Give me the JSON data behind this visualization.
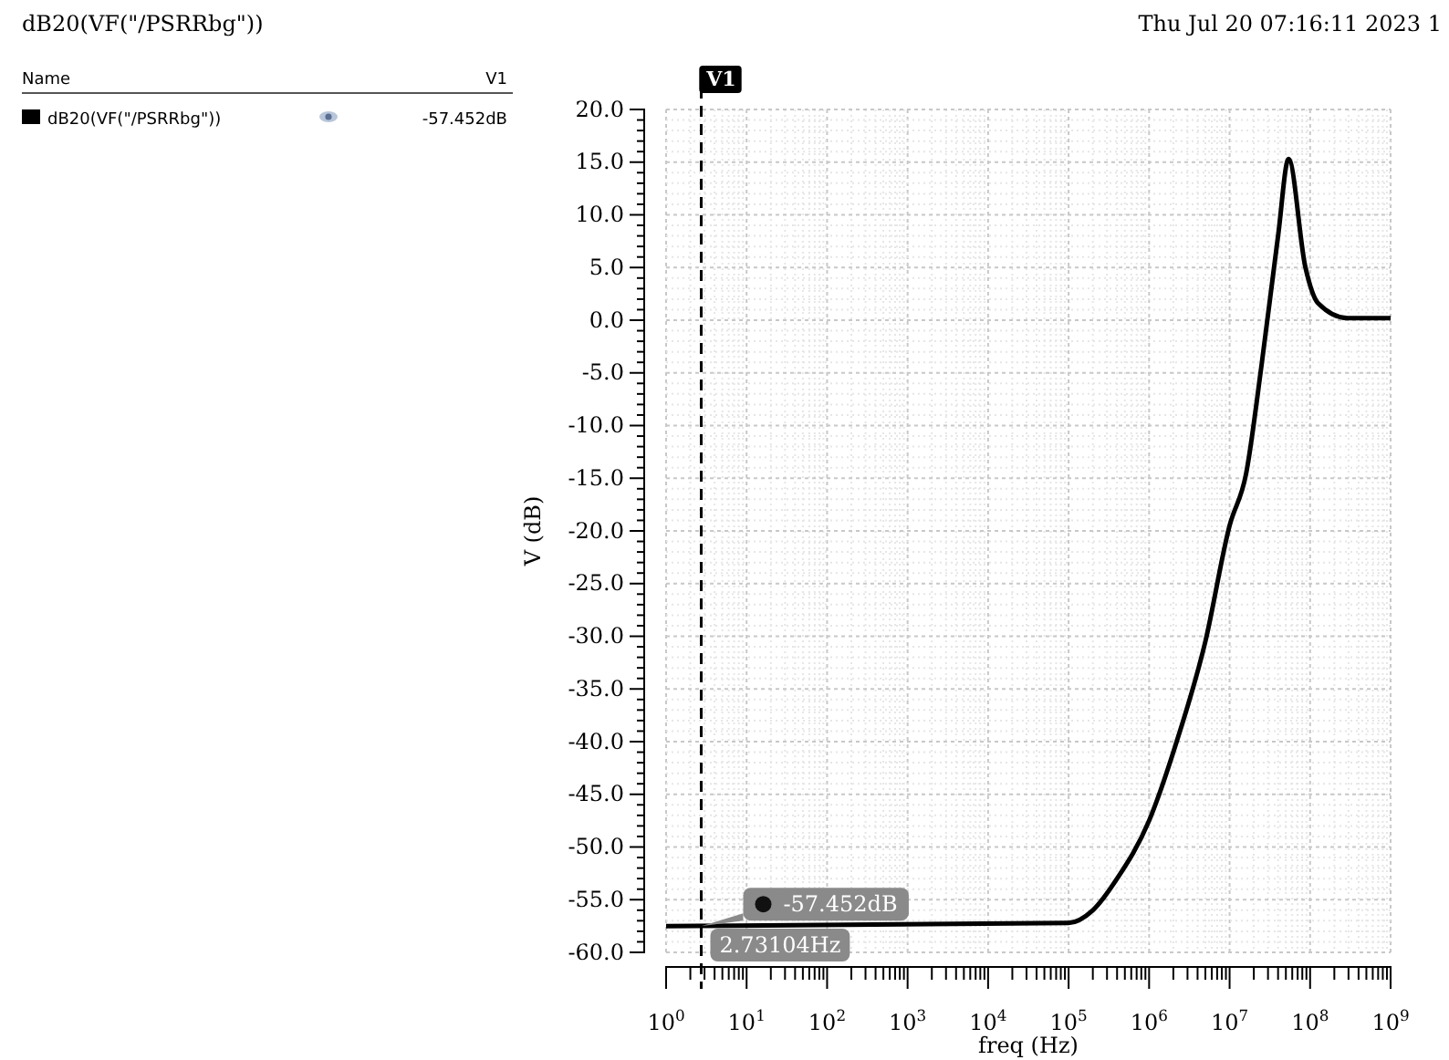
{
  "chart_data": {
    "type": "line",
    "title": "dB20(VF(\"/PSRRbg\"))",
    "subtitle": "Thu Jul 20 07:16:11 2023   1",
    "xlabel": "freq (Hz)",
    "ylabel": "V (dB)",
    "legend_title": "Name",
    "log": "x",
    "grid": true,
    "legend": "left",
    "line_style": "solid",
    "marker": "none",
    "xlim": [
      1,
      1000000000
    ],
    "xticks": [
      {
        "value": 1,
        "label": "10$^{0}$"
      },
      {
        "value": 10,
        "label": "10$^{1}$"
      },
      {
        "value": 100,
        "label": "10$^{2}$"
      },
      {
        "value": 1000,
        "label": "10$^{3}$"
      },
      {
        "value": 10000,
        "label": "10$^{4}$"
      },
      {
        "value": 100000,
        "label": "10$^{5}$"
      },
      {
        "value": 1000000,
        "label": "10$^{6}$"
      },
      {
        "value": 10000000,
        "label": "10$^{7}$"
      },
      {
        "value": 100000000,
        "label": "10$^{8}$"
      },
      {
        "value": 1000000000,
        "label": "10$^{9}$"
      }
    ],
    "ylim": [
      -60,
      20
    ],
    "yticks": [
      {
        "value": 20,
        "label": "20.0"
      },
      {
        "value": 15,
        "label": "15.0"
      },
      {
        "value": 10,
        "label": "10.0"
      },
      {
        "value": 5,
        "label": "5.0"
      },
      {
        "value": 0,
        "label": "0.0"
      },
      {
        "value": -5,
        "label": "-5.0"
      },
      {
        "value": -10,
        "label": "-10.0"
      },
      {
        "value": -15,
        "label": "-15.0"
      },
      {
        "value": -20,
        "label": "-20.0"
      },
      {
        "value": -25,
        "label": "-25.0"
      },
      {
        "value": -30,
        "label": "-30.0"
      },
      {
        "value": -35,
        "label": "-35.0"
      },
      {
        "value": -40,
        "label": "-40.0"
      },
      {
        "value": -45,
        "label": "-45.0"
      },
      {
        "value": -50,
        "label": "-50.0"
      },
      {
        "value": -55,
        "label": "-55.0"
      },
      {
        "value": -60,
        "label": "-60.0"
      }
    ],
    "ref_lines": [
      {
        "axis": "x",
        "value": 2.73104,
        "label": "V1",
        "color": "#000000",
        "line_style": "dashed"
      }
    ],
    "annotations": [
      "V1",
      "-57.452dB",
      "-57.452dB",
      {
        "text": "2.73104Hz",
        "x": 2.73104
      }
    ],
    "series": [
      {
        "name": "dB20(VF(\"/PSRRbg\"))",
        "color": "#000000",
        "x": [
          1,
          100000,
          200000,
          400000,
          1000000,
          2200000,
          5000000,
          10000000,
          16000000,
          25000000,
          40000000,
          54000000,
          87000000,
          126000000,
          290000000,
          1000000000
        ],
        "values": [
          -57.5,
          -57.2,
          -56,
          -53,
          -47.5,
          -40,
          -30.5,
          -19.5,
          -14.6,
          -4.2,
          8,
          15.3,
          5.1,
          1.6,
          0.2,
          0.2
        ]
      }
    ]
  }
}
